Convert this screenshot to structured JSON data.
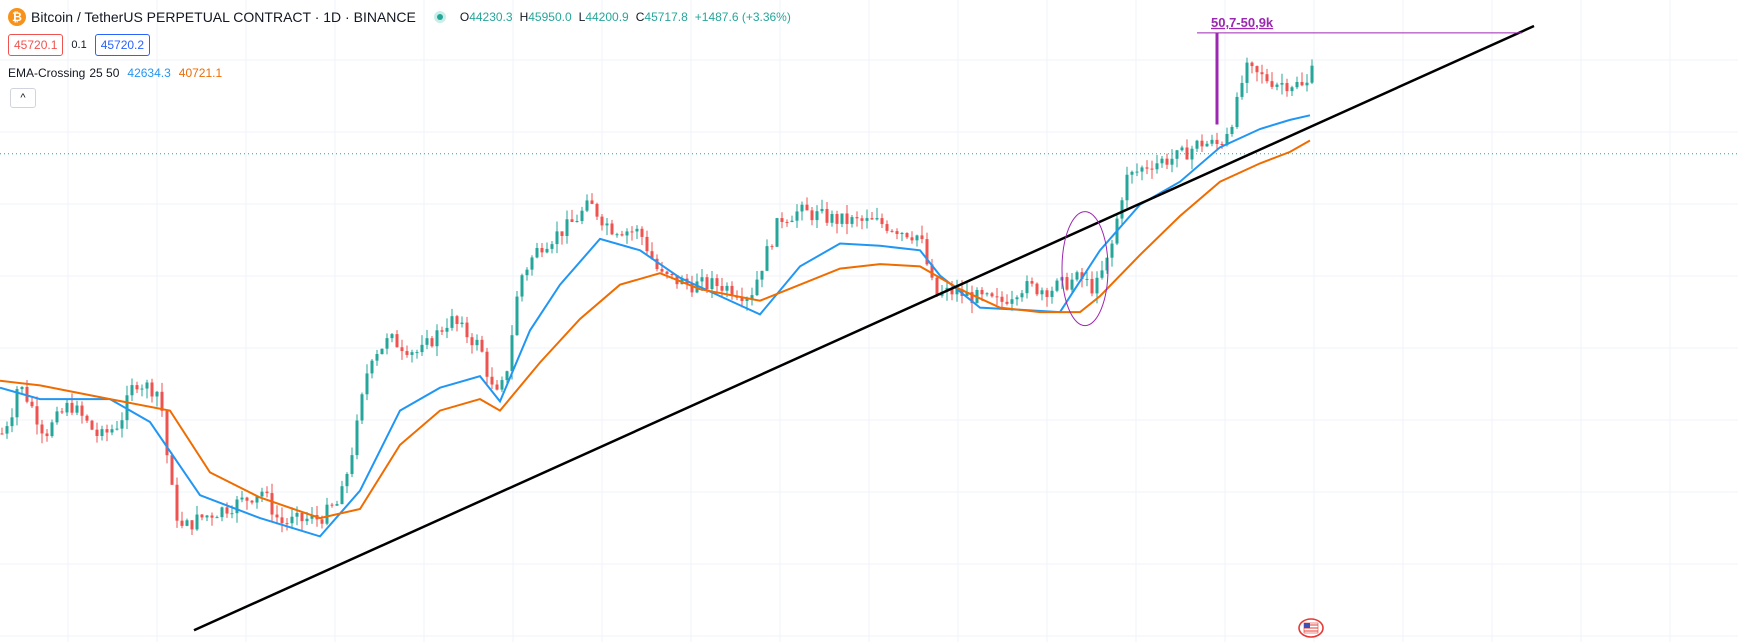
{
  "header": {
    "symbol_icon": "bitcoin-icon",
    "title": "Bitcoin / TetherUS PERPETUAL CONTRACT · 1D · BINANCE",
    "status_icon": "market-open-dot-icon",
    "ohlc": {
      "open_label": "O",
      "open": "44230.3",
      "high_label": "H",
      "high": "45950.0",
      "low_label": "L",
      "low": "44200.9",
      "close_label": "C",
      "close": "45717.8",
      "change": "+1487.6 (+3.36%)"
    }
  },
  "trade": {
    "sell_price": "45720.1",
    "spread": "0.1",
    "buy_price": "45720.2"
  },
  "indicator": {
    "name": "EMA-Crossing",
    "params": "25 50",
    "fast_value": "42634.3",
    "slow_value": "40721.1"
  },
  "controls": {
    "collapse_label": "^",
    "collapse_icon": "chevron-up-icon",
    "flag_icon": "flag-icon"
  },
  "annotation": {
    "target_label": "50,7-50,9k"
  },
  "colors": {
    "up": "#26a69a",
    "down": "#ef5350",
    "ema_fast": "#2196f3",
    "ema_slow": "#ef6c00",
    "annotation": "#9c27b0",
    "trendline": "#000000",
    "last_price_line": "#26a69a"
  },
  "chart_data": {
    "type": "candlestick",
    "title": "Bitcoin / TetherUS PERPETUAL CONTRACT · 1D · BINANCE",
    "xlabel": "",
    "ylabel": "",
    "ylim": [
      25000,
      52000
    ],
    "grid": true,
    "series": [
      {
        "name": "EMA 25",
        "color": "#2196f3",
        "values": [
          [
            0,
            35500
          ],
          [
            40,
            35000
          ],
          [
            110,
            35000
          ],
          [
            150,
            34000
          ],
          [
            200,
            30800
          ],
          [
            260,
            29800
          ],
          [
            320,
            29000
          ],
          [
            360,
            31000
          ],
          [
            400,
            34500
          ],
          [
            440,
            35500
          ],
          [
            480,
            36000
          ],
          [
            500,
            34900
          ],
          [
            530,
            38000
          ],
          [
            560,
            40000
          ],
          [
            600,
            42000
          ],
          [
            640,
            41500
          ],
          [
            680,
            40300
          ],
          [
            720,
            39500
          ],
          [
            760,
            38700
          ],
          [
            800,
            40800
          ],
          [
            840,
            41800
          ],
          [
            880,
            41700
          ],
          [
            920,
            41500
          ],
          [
            940,
            40400
          ],
          [
            980,
            39000
          ],
          [
            1020,
            38900
          ],
          [
            1060,
            38800
          ],
          [
            1100,
            41500
          ],
          [
            1140,
            43500
          ],
          [
            1180,
            44500
          ],
          [
            1220,
            46000
          ],
          [
            1260,
            46800
          ],
          [
            1290,
            47200
          ],
          [
            1310,
            47400
          ]
        ]
      },
      {
        "name": "EMA 50",
        "color": "#ef6c00",
        "values": [
          [
            0,
            35800
          ],
          [
            40,
            35600
          ],
          [
            110,
            35000
          ],
          [
            170,
            34500
          ],
          [
            210,
            31800
          ],
          [
            260,
            30700
          ],
          [
            320,
            29800
          ],
          [
            360,
            30200
          ],
          [
            400,
            33000
          ],
          [
            440,
            34500
          ],
          [
            480,
            35000
          ],
          [
            500,
            34500
          ],
          [
            540,
            36600
          ],
          [
            580,
            38500
          ],
          [
            620,
            40000
          ],
          [
            660,
            40500
          ],
          [
            700,
            39800
          ],
          [
            760,
            39300
          ],
          [
            800,
            40000
          ],
          [
            840,
            40700
          ],
          [
            880,
            40900
          ],
          [
            920,
            40800
          ],
          [
            960,
            39800
          ],
          [
            1000,
            39000
          ],
          [
            1040,
            38800
          ],
          [
            1080,
            38800
          ],
          [
            1100,
            39500
          ],
          [
            1140,
            41300
          ],
          [
            1180,
            43000
          ],
          [
            1220,
            44500
          ],
          [
            1260,
            45300
          ],
          [
            1290,
            45800
          ],
          [
            1310,
            46300
          ]
        ]
      }
    ],
    "price_path": [
      [
        2,
        33500
      ],
      [
        12,
        34500
      ],
      [
        18,
        35700
      ],
      [
        28,
        35000
      ],
      [
        45,
        33500
      ],
      [
        70,
        34800
      ],
      [
        100,
        33300
      ],
      [
        120,
        34000
      ],
      [
        135,
        35800
      ],
      [
        160,
        35300
      ],
      [
        170,
        31400
      ],
      [
        180,
        29300
      ],
      [
        200,
        29800
      ],
      [
        240,
        30500
      ],
      [
        262,
        31000
      ],
      [
        280,
        29600
      ],
      [
        320,
        29800
      ],
      [
        340,
        30500
      ],
      [
        355,
        33300
      ],
      [
        370,
        36900
      ],
      [
        390,
        37600
      ],
      [
        420,
        37000
      ],
      [
        450,
        38500
      ],
      [
        480,
        37300
      ],
      [
        495,
        35000
      ],
      [
        505,
        35800
      ],
      [
        520,
        40300
      ],
      [
        540,
        41700
      ],
      [
        570,
        42600
      ],
      [
        590,
        43500
      ],
      [
        610,
        42500
      ],
      [
        640,
        42300
      ],
      [
        660,
        40400
      ],
      [
        690,
        40000
      ],
      [
        720,
        40000
      ],
      [
        750,
        39500
      ],
      [
        780,
        42900
      ],
      [
        800,
        43200
      ],
      [
        840,
        42800
      ],
      [
        880,
        42700
      ],
      [
        920,
        42100
      ],
      [
        935,
        39500
      ],
      [
        950,
        39700
      ],
      [
        980,
        39400
      ],
      [
        1000,
        39200
      ],
      [
        1020,
        39900
      ],
      [
        1050,
        39800
      ],
      [
        1080,
        40300
      ],
      [
        1095,
        39800
      ],
      [
        1110,
        41300
      ],
      [
        1125,
        44600
      ],
      [
        1150,
        45300
      ],
      [
        1180,
        45600
      ],
      [
        1200,
        46200
      ],
      [
        1220,
        46100
      ],
      [
        1235,
        47500
      ],
      [
        1245,
        49400
      ],
      [
        1260,
        49100
      ],
      [
        1280,
        48800
      ],
      [
        1295,
        48800
      ],
      [
        1306,
        48500
      ],
      [
        1312,
        49900
      ]
    ],
    "candle_count": 263,
    "last_price": 45717.8,
    "annotations": [
      {
        "type": "trendline",
        "points": [
          [
            194,
            24900
          ],
          [
            1534,
            51300
          ]
        ]
      },
      {
        "type": "target",
        "label": "50,7-50,9k",
        "x": 1217,
        "y_from": 47000,
        "y_to": 51000
      },
      {
        "type": "ellipse",
        "center": [
          1085,
          40700
        ],
        "note": "highlighted consolidation"
      }
    ]
  }
}
